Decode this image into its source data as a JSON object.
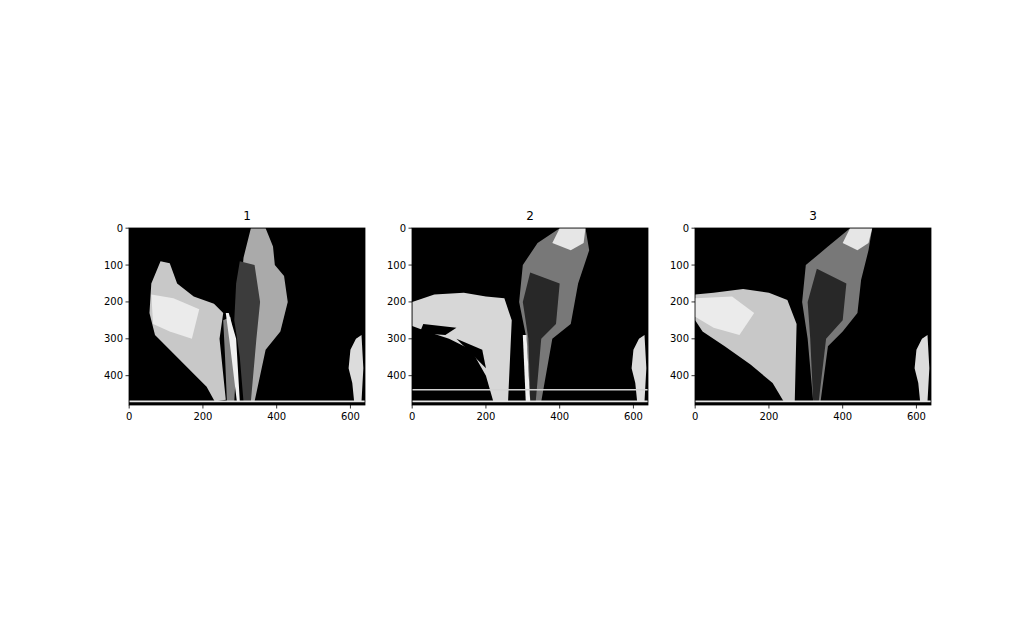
{
  "chart_data": [
    {
      "type": "image",
      "title": "1",
      "xlim": [
        -0.5,
        639.5
      ],
      "ylim": [
        479.5,
        -0.5
      ],
      "xticks": [
        0,
        200,
        400,
        600
      ],
      "yticks": [
        0,
        100,
        200,
        300,
        400
      ],
      "regions": [
        {
          "gray": 200,
          "points": [
            [
              85,
              90
            ],
            [
              110,
              95
            ],
            [
              130,
              150
            ],
            [
              175,
              185
            ],
            [
              230,
              205
            ],
            [
              255,
              230
            ],
            [
              245,
              300
            ],
            [
              262,
              465
            ],
            [
              232,
              470
            ],
            [
              210,
              430
            ],
            [
              170,
              390
            ],
            [
              120,
              340
            ],
            [
              70,
              290
            ],
            [
              55,
              230
            ],
            [
              60,
              150
            ]
          ]
        },
        {
          "gray": 235,
          "points": [
            [
              60,
              180
            ],
            [
              120,
              190
            ],
            [
              190,
              220
            ],
            [
              170,
              300
            ],
            [
              110,
              280
            ],
            [
              65,
              260
            ]
          ]
        },
        {
          "gray": 170,
          "points": [
            [
              330,
              0
            ],
            [
              370,
              0
            ],
            [
              390,
              50
            ],
            [
              395,
              100
            ],
            [
              420,
              130
            ],
            [
              430,
              200
            ],
            [
              410,
              280
            ],
            [
              370,
              330
            ],
            [
              340,
              470
            ],
            [
              320,
              470
            ],
            [
              320,
              300
            ],
            [
              300,
              200
            ],
            [
              310,
              80
            ]
          ]
        },
        {
          "gray": 60,
          "points": [
            [
              300,
              90
            ],
            [
              340,
              100
            ],
            [
              355,
              200
            ],
            [
              345,
              300
            ],
            [
              330,
              470
            ],
            [
              310,
              470
            ],
            [
              300,
              350
            ],
            [
              285,
              250
            ],
            [
              290,
              150
            ]
          ]
        },
        {
          "gray": 130,
          "points": [
            [
              255,
              250
            ],
            [
              275,
              240
            ],
            [
              290,
              380
            ],
            [
              285,
              470
            ],
            [
              265,
              470
            ],
            [
              260,
              350
            ]
          ]
        },
        {
          "gray": 240,
          "points": [
            [
              262,
              230
            ],
            [
              270,
              230
            ],
            [
              290,
              300
            ],
            [
              300,
              470
            ],
            [
              292,
              470
            ],
            [
              275,
              330
            ]
          ]
        },
        {
          "gray": 220,
          "points": [
            [
              600,
              330
            ],
            [
              615,
              300
            ],
            [
              630,
              290
            ],
            [
              635,
              380
            ],
            [
              630,
              470
            ],
            [
              610,
              470
            ],
            [
              605,
              420
            ],
            [
              595,
              380
            ]
          ]
        },
        {
          "gray": 230,
          "points": [
            [
              0,
              467
            ],
            [
              640,
              467
            ],
            [
              640,
              472
            ],
            [
              0,
              472
            ]
          ]
        }
      ]
    },
    {
      "type": "image",
      "title": "2",
      "xlim": [
        -0.5,
        639.5
      ],
      "ylim": [
        479.5,
        -0.5
      ],
      "xticks": [
        0,
        200,
        400,
        600
      ],
      "yticks": [
        0,
        100,
        200,
        300,
        400
      ],
      "regions": [
        {
          "gray": 215,
          "points": [
            [
              0,
              200
            ],
            [
              60,
              180
            ],
            [
              140,
              175
            ],
            [
              200,
              185
            ],
            [
              250,
              190
            ],
            [
              270,
              250
            ],
            [
              260,
              470
            ],
            [
              220,
              470
            ],
            [
              200,
              400
            ],
            [
              160,
              330
            ],
            [
              100,
              300
            ],
            [
              40,
              280
            ],
            [
              0,
              265
            ]
          ]
        },
        {
          "gray": 0,
          "points": [
            [
              30,
              260
            ],
            [
              120,
              270
            ],
            [
              90,
              290
            ],
            [
              20,
              285
            ]
          ]
        },
        {
          "gray": 0,
          "points": [
            [
              120,
              300
            ],
            [
              190,
              330
            ],
            [
              200,
              380
            ],
            [
              150,
              330
            ]
          ]
        },
        {
          "gray": 120,
          "points": [
            [
              300,
              100
            ],
            [
              340,
              40
            ],
            [
              400,
              0
            ],
            [
              470,
              0
            ],
            [
              480,
              60
            ],
            [
              450,
              150
            ],
            [
              430,
              260
            ],
            [
              380,
              300
            ],
            [
              350,
              470
            ],
            [
              320,
              470
            ],
            [
              310,
              300
            ],
            [
              290,
              200
            ]
          ]
        },
        {
          "gray": 230,
          "points": [
            [
              400,
              0
            ],
            [
              470,
              0
            ],
            [
              465,
              40
            ],
            [
              430,
              60
            ],
            [
              380,
              40
            ]
          ]
        },
        {
          "gray": 40,
          "points": [
            [
              320,
              120
            ],
            [
              400,
              150
            ],
            [
              390,
              260
            ],
            [
              350,
              300
            ],
            [
              335,
              470
            ],
            [
              320,
              470
            ],
            [
              315,
              300
            ],
            [
              300,
              200
            ]
          ]
        },
        {
          "gray": 240,
          "points": [
            [
              300,
              290
            ],
            [
              310,
              290
            ],
            [
              320,
              470
            ],
            [
              308,
              470
            ]
          ]
        },
        {
          "gray": 220,
          "points": [
            [
              600,
              330
            ],
            [
              615,
              300
            ],
            [
              630,
              290
            ],
            [
              635,
              380
            ],
            [
              630,
              470
            ],
            [
              610,
              470
            ],
            [
              605,
              420
            ],
            [
              595,
              380
            ]
          ]
        },
        {
          "gray": 210,
          "points": [
            [
              0,
              436
            ],
            [
              640,
              436
            ],
            [
              640,
              440
            ],
            [
              0,
              440
            ]
          ]
        },
        {
          "gray": 230,
          "points": [
            [
              0,
              467
            ],
            [
              640,
              467
            ],
            [
              640,
              472
            ],
            [
              0,
              472
            ]
          ]
        }
      ]
    },
    {
      "type": "image",
      "title": "3",
      "xlim": [
        -0.5,
        639.5
      ],
      "ylim": [
        479.5,
        -0.5
      ],
      "xticks": [
        0,
        200,
        400,
        600
      ],
      "yticks": [
        0,
        100,
        200,
        300,
        400
      ],
      "regions": [
        {
          "gray": 200,
          "points": [
            [
              0,
              180
            ],
            [
              50,
              175
            ],
            [
              130,
              165
            ],
            [
              200,
              175
            ],
            [
              250,
              195
            ],
            [
              275,
              260
            ],
            [
              270,
              470
            ],
            [
              240,
              470
            ],
            [
              210,
              420
            ],
            [
              150,
              370
            ],
            [
              80,
              320
            ],
            [
              20,
              280
            ],
            [
              0,
              250
            ]
          ]
        },
        {
          "gray": 235,
          "points": [
            [
              0,
              190
            ],
            [
              100,
              185
            ],
            [
              160,
              230
            ],
            [
              120,
              290
            ],
            [
              50,
              270
            ],
            [
              0,
              240
            ]
          ]
        },
        {
          "gray": 120,
          "points": [
            [
              300,
              100
            ],
            [
              360,
              50
            ],
            [
              420,
              0
            ],
            [
              480,
              0
            ],
            [
              470,
              60
            ],
            [
              450,
              140
            ],
            [
              440,
              230
            ],
            [
              400,
              280
            ],
            [
              360,
              320
            ],
            [
              340,
              470
            ],
            [
              320,
              470
            ],
            [
              305,
              300
            ],
            [
              290,
              200
            ]
          ]
        },
        {
          "gray": 230,
          "points": [
            [
              420,
              0
            ],
            [
              480,
              0
            ],
            [
              470,
              40
            ],
            [
              440,
              60
            ],
            [
              400,
              40
            ]
          ]
        },
        {
          "gray": 40,
          "points": [
            [
              330,
              110
            ],
            [
              410,
              150
            ],
            [
              400,
              250
            ],
            [
              355,
              300
            ],
            [
              335,
              470
            ],
            [
              320,
              470
            ],
            [
              312,
              300
            ],
            [
              305,
              200
            ]
          ]
        },
        {
          "gray": 220,
          "points": [
            [
              600,
              330
            ],
            [
              615,
              300
            ],
            [
              630,
              290
            ],
            [
              635,
              380
            ],
            [
              630,
              470
            ],
            [
              610,
              470
            ],
            [
              605,
              420
            ],
            [
              595,
              380
            ]
          ]
        },
        {
          "gray": 230,
          "points": [
            [
              0,
              467
            ],
            [
              640,
              467
            ],
            [
              640,
              472
            ],
            [
              0,
              472
            ]
          ]
        }
      ]
    }
  ]
}
